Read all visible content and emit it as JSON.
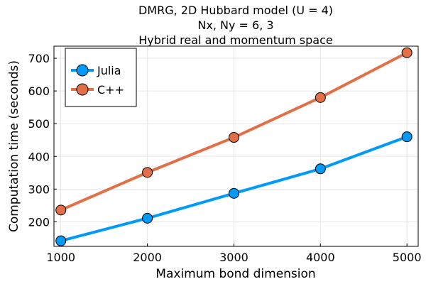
{
  "chart_data": {
    "type": "line",
    "title_lines": [
      "DMRG, 2D Hubbard model (U = 4)",
      "Nx, Ny = 6, 3",
      "Hybrid real and momentum space"
    ],
    "xlabel": "Maximum bond dimension",
    "ylabel": "Computation time (seconds)",
    "x": [
      1000,
      2000,
      3000,
      4000,
      5000
    ],
    "xticks": [
      1000,
      2000,
      3000,
      4000,
      5000
    ],
    "yticks": [
      200,
      300,
      400,
      500,
      600,
      700
    ],
    "xlim": [
      920,
      5130
    ],
    "ylim": [
      125,
      737
    ],
    "grid": true,
    "legend_position": "top-left",
    "series": [
      {
        "name": "Julia",
        "color": "#009af9",
        "values": [
          142,
          211,
          287,
          362,
          460
        ]
      },
      {
        "name": "C++",
        "color": "#e26f46",
        "values": [
          236,
          351,
          458,
          580,
          717
        ]
      }
    ]
  }
}
